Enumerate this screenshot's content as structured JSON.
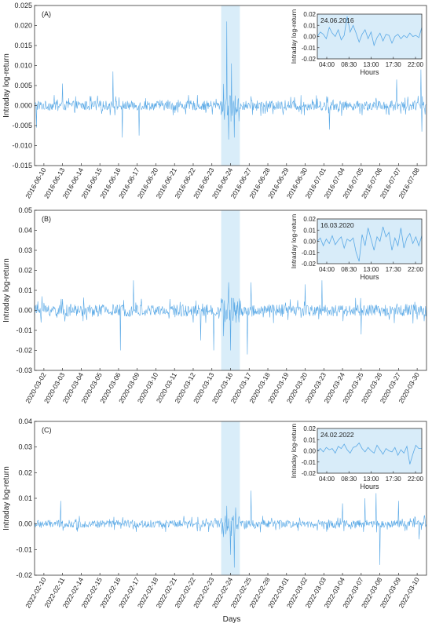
{
  "xlabel_common": "Days",
  "colors": {
    "line": "#5aa9e6",
    "highlight": "#cfe8f8",
    "inset_bg": "#d8ecf9"
  },
  "chart_data": [
    {
      "type": "line",
      "panel_label": "(A)",
      "ylabel": "Intraday log-return",
      "ylim": [
        -0.015,
        0.025
      ],
      "yticks": [
        "0.025",
        "0.020",
        "0.015",
        "0.010",
        "0.005",
        "0.000",
        "-0.005",
        "-0.010",
        "-0.015"
      ],
      "yticks_values": [
        0.025,
        0.02,
        0.015,
        0.01,
        0.005,
        0.0,
        -0.005,
        -0.01,
        -0.015
      ],
      "x_categories": [
        "2016-06-10",
        "2016-06-13",
        "2016-06-14",
        "2016-06-15",
        "2016-06-16",
        "2016-06-17",
        "2016-06-20",
        "2016-06-21",
        "2016-06-22",
        "2016-06-23",
        "2016-06-24",
        "2016-06-27",
        "2016-06-28",
        "2016-06-29",
        "2016-06-30",
        "2016-07-01",
        "2016-07-04",
        "2016-07-05",
        "2016-07-06",
        "2016-07-07",
        "2016-07-08"
      ],
      "highlight_day": "2016-06-24",
      "noise_amplitude": 0.0012,
      "spikes": [
        {
          "day": "2016-06-10",
          "frac": 0.1,
          "value": -0.0055
        },
        {
          "day": "2016-06-13",
          "frac": 0.5,
          "value": 0.0055
        },
        {
          "day": "2016-06-16",
          "frac": 0.2,
          "value": 0.0085
        },
        {
          "day": "2016-06-16",
          "frac": 0.7,
          "value": -0.008
        },
        {
          "day": "2016-06-17",
          "frac": 0.6,
          "value": -0.0075
        },
        {
          "day": "2016-06-24",
          "frac": 0.3,
          "value": 0.021
        },
        {
          "day": "2016-06-24",
          "frac": 0.4,
          "value": -0.0085
        },
        {
          "day": "2016-06-24",
          "frac": 0.55,
          "value": 0.0105
        },
        {
          "day": "2016-06-24",
          "frac": 0.7,
          "value": -0.008
        },
        {
          "day": "2016-07-01",
          "frac": 0.8,
          "value": -0.006
        },
        {
          "day": "2016-07-07",
          "frac": 0.4,
          "value": 0.0065
        },
        {
          "day": "2016-07-08",
          "frac": 0.7,
          "value": 0.009
        },
        {
          "day": "2016-07-08",
          "frac": 0.75,
          "value": -0.0065
        }
      ],
      "inset": {
        "title": "24.06.2016",
        "ylabel": "Intraday log-return",
        "xlabel": "Hours",
        "ylim": [
          -0.02,
          0.02
        ],
        "yticks": [
          "0.02",
          "0.01",
          "0.00",
          "-0.01",
          "-0.02"
        ],
        "yticks_values": [
          0.02,
          0.01,
          0.0,
          -0.01,
          -0.02
        ],
        "xticks": [
          "04:00",
          "08:30",
          "13:00",
          "17:30",
          "22:00"
        ],
        "values": [
          0.0,
          0.004,
          0.002,
          -0.002,
          0.008,
          0.003,
          0.0,
          0.006,
          -0.003,
          0.001,
          0.018,
          0.004,
          0.01,
          0.003,
          -0.005,
          0.002,
          0.006,
          -0.002,
          0.004,
          -0.008,
          -0.001,
          0.003,
          -0.004,
          0.002,
          0.001,
          -0.006,
          0.0,
          0.002,
          -0.002,
          0.001,
          -0.001,
          0.003,
          0.0,
          0.001,
          -0.001,
          0.008
        ]
      }
    },
    {
      "type": "line",
      "panel_label": "(B)",
      "ylabel": "Intraday log-return",
      "ylim": [
        -0.03,
        0.05
      ],
      "yticks": [
        "0.05",
        "0.04",
        "0.03",
        "0.02",
        "0.01",
        "0.00",
        "-0.01",
        "-0.02",
        "-0.03"
      ],
      "yticks_values": [
        0.05,
        0.04,
        0.03,
        0.02,
        0.01,
        0.0,
        -0.01,
        -0.02,
        -0.03
      ],
      "x_categories": [
        "2020-03-02",
        "2020-03-03",
        "2020-03-04",
        "2020-03-05",
        "2020-03-06",
        "2020-03-09",
        "2020-03-10",
        "2020-03-11",
        "2020-03-12",
        "2020-03-13",
        "2020-03-16",
        "2020-03-17",
        "2020-03-18",
        "2020-03-19",
        "2020-03-20",
        "2020-03-23",
        "2020-03-24",
        "2020-03-25",
        "2020-03-26",
        "2020-03-27",
        "2020-03-30"
      ],
      "highlight_day": "2020-03-16",
      "noise_amplitude": 0.003,
      "spikes": [
        {
          "day": "2020-03-02",
          "frac": 0.4,
          "value": 0.007
        },
        {
          "day": "2020-03-06",
          "frac": 0.6,
          "value": -0.02
        },
        {
          "day": "2020-03-09",
          "frac": 0.3,
          "value": 0.015
        },
        {
          "day": "2020-03-12",
          "frac": 0.9,
          "value": -0.015
        },
        {
          "day": "2020-03-13",
          "frac": 0.6,
          "value": -0.02
        },
        {
          "day": "2020-03-16",
          "frac": 0.4,
          "value": 0.014
        },
        {
          "day": "2020-03-16",
          "frac": 0.5,
          "value": -0.02
        },
        {
          "day": "2020-03-17",
          "frac": 0.4,
          "value": -0.022
        },
        {
          "day": "2020-03-17",
          "frac": 0.6,
          "value": 0.014
        },
        {
          "day": "2020-03-20",
          "frac": 0.5,
          "value": 0.013
        },
        {
          "day": "2020-03-23",
          "frac": 0.4,
          "value": 0.015
        },
        {
          "day": "2020-03-25",
          "frac": 0.5,
          "value": -0.012
        }
      ],
      "inset": {
        "title": "16.03.2020",
        "ylabel": "Intraday log-return",
        "xlabel": "Hours",
        "ylim": [
          -0.02,
          0.02
        ],
        "yticks": [
          "0.02",
          "0.01",
          "0.00",
          "-0.01",
          "-0.02"
        ],
        "yticks_values": [
          0.02,
          0.01,
          0.0,
          -0.01,
          -0.02
        ],
        "xticks": [
          "04:00",
          "08:30",
          "13:00",
          "17:30",
          "22:00"
        ],
        "values": [
          0.0,
          0.003,
          -0.004,
          0.002,
          -0.002,
          0.005,
          -0.003,
          0.001,
          0.004,
          -0.006,
          0.002,
          0.0,
          0.003,
          -0.01,
          -0.018,
          0.006,
          -0.004,
          0.012,
          0.002,
          -0.008,
          0.004,
          0.0,
          0.013,
          0.004,
          0.008,
          -0.008,
          0.003,
          -0.004,
          0.012,
          -0.006,
          0.003,
          0.007,
          -0.002,
          0.004,
          -0.004,
          0.005
        ]
      }
    },
    {
      "type": "line",
      "panel_label": "(C)",
      "ylabel": "Intraday log-return",
      "ylim": [
        -0.02,
        0.04
      ],
      "yticks": [
        "0.04",
        "0.03",
        "0.02",
        "0.01",
        "0.00",
        "-0.01",
        "-0.02"
      ],
      "yticks_values": [
        0.04,
        0.03,
        0.02,
        0.01,
        0.0,
        -0.01,
        -0.02
      ],
      "x_categories": [
        "2022-02-10",
        "2022-02-11",
        "2022-02-14",
        "2022-02-15",
        "2022-02-16",
        "2022-02-17",
        "2022-02-18",
        "2022-02-21",
        "2022-02-22",
        "2022-02-23",
        "2022-02-24",
        "2022-02-25",
        "2022-02-28",
        "2022-03-01",
        "2022-03-02",
        "2022-03-03",
        "2022-03-04",
        "2022-03-07",
        "2022-03-08",
        "2022-03-09",
        "2022-03-10"
      ],
      "highlight_day": "2022-02-24",
      "noise_amplitude": 0.0015,
      "spikes": [
        {
          "day": "2022-02-11",
          "frac": 0.4,
          "value": 0.009
        },
        {
          "day": "2022-02-24",
          "frac": 0.3,
          "value": 0.007
        },
        {
          "day": "2022-02-24",
          "frac": 0.5,
          "value": -0.012
        },
        {
          "day": "2022-02-24",
          "frac": 0.7,
          "value": -0.017
        },
        {
          "day": "2022-02-25",
          "frac": 0.6,
          "value": 0.013
        },
        {
          "day": "2022-03-04",
          "frac": 0.5,
          "value": 0.008
        },
        {
          "day": "2022-03-07",
          "frac": 0.7,
          "value": 0.01
        },
        {
          "day": "2022-03-08",
          "frac": 0.3,
          "value": 0.012
        },
        {
          "day": "2022-03-08",
          "frac": 0.5,
          "value": -0.016
        },
        {
          "day": "2022-03-09",
          "frac": 0.5,
          "value": 0.009
        },
        {
          "day": "2022-03-10",
          "frac": 0.6,
          "value": -0.006
        }
      ],
      "inset": {
        "title": "24.02.2022",
        "ylabel": "Intraday log-return",
        "xlabel": "Hours",
        "ylim": [
          -0.02,
          0.02
        ],
        "yticks": [
          "0.02",
          "0.01",
          "0.00",
          "-0.01",
          "-0.02"
        ],
        "yticks_values": [
          0.02,
          0.01,
          0.0,
          -0.01,
          -0.02
        ],
        "xticks": [
          "04:00",
          "08:30",
          "13:00",
          "17:30",
          "22:00"
        ],
        "values": [
          0.0,
          0.002,
          -0.001,
          0.003,
          0.001,
          0.002,
          -0.002,
          0.004,
          0.002,
          0.006,
          0.001,
          -0.002,
          0.003,
          0.004,
          0.007,
          0.002,
          -0.001,
          0.003,
          0.0,
          -0.002,
          0.005,
          0.001,
          -0.003,
          0.002,
          0.0,
          -0.001,
          0.003,
          -0.004,
          0.001,
          -0.002,
          0.004,
          -0.012,
          -0.003,
          0.005,
          0.002,
          0.002
        ]
      }
    }
  ]
}
